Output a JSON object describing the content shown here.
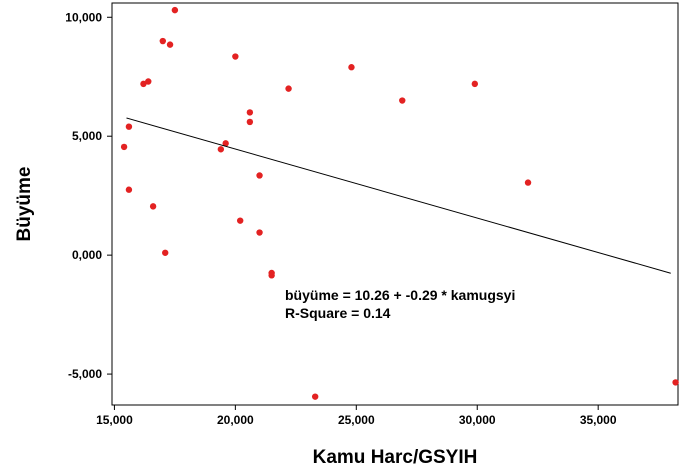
{
  "chart_data": {
    "type": "scatter",
    "xlabel": "Kamu Harc/GSYIH",
    "ylabel": "Büyüme",
    "xlim": [
      14.9,
      38.3
    ],
    "ylim": [
      -6.3,
      10.6
    ],
    "x_ticks": [
      15,
      20,
      25,
      30,
      35
    ],
    "x_tick_labels": [
      "15,000",
      "20,000",
      "25,000",
      "30,000",
      "35,000"
    ],
    "y_ticks": [
      -5,
      0,
      5,
      10
    ],
    "y_tick_labels": [
      "-5,000",
      "0,000",
      "5,000",
      "10,000"
    ],
    "marker_color": "#e32222",
    "line_color": "#000000",
    "points": [
      {
        "x": 17.5,
        "y": 10.3
      },
      {
        "x": 17.0,
        "y": 9.0
      },
      {
        "x": 17.3,
        "y": 8.85
      },
      {
        "x": 20.0,
        "y": 8.35
      },
      {
        "x": 24.8,
        "y": 7.9
      },
      {
        "x": 16.4,
        "y": 7.3
      },
      {
        "x": 16.2,
        "y": 7.2
      },
      {
        "x": 29.9,
        "y": 7.2
      },
      {
        "x": 22.2,
        "y": 7.0
      },
      {
        "x": 26.9,
        "y": 6.5
      },
      {
        "x": 20.6,
        "y": 6.0
      },
      {
        "x": 20.6,
        "y": 5.6
      },
      {
        "x": 15.6,
        "y": 5.4
      },
      {
        "x": 19.6,
        "y": 4.7
      },
      {
        "x": 19.4,
        "y": 4.45
      },
      {
        "x": 15.4,
        "y": 4.55
      },
      {
        "x": 21.0,
        "y": 3.35
      },
      {
        "x": 32.1,
        "y": 3.05
      },
      {
        "x": 15.6,
        "y": 2.75
      },
      {
        "x": 16.6,
        "y": 2.05
      },
      {
        "x": 20.2,
        "y": 1.45
      },
      {
        "x": 21.0,
        "y": 0.95
      },
      {
        "x": 17.1,
        "y": 0.1
      },
      {
        "x": 21.5,
        "y": -0.75
      },
      {
        "x": 21.5,
        "y": -0.85
      },
      {
        "x": 23.3,
        "y": -5.95
      },
      {
        "x": 38.2,
        "y": -5.35
      }
    ],
    "regression": {
      "intercept": 10.26,
      "slope": -0.29,
      "x_range": [
        15.5,
        38.0
      ],
      "equation_label": "büyüme = 10.26 + -0.29 * kamugsyi",
      "r_square_label": "R-Square = 0.14"
    },
    "grid": false,
    "legend": "none"
  }
}
